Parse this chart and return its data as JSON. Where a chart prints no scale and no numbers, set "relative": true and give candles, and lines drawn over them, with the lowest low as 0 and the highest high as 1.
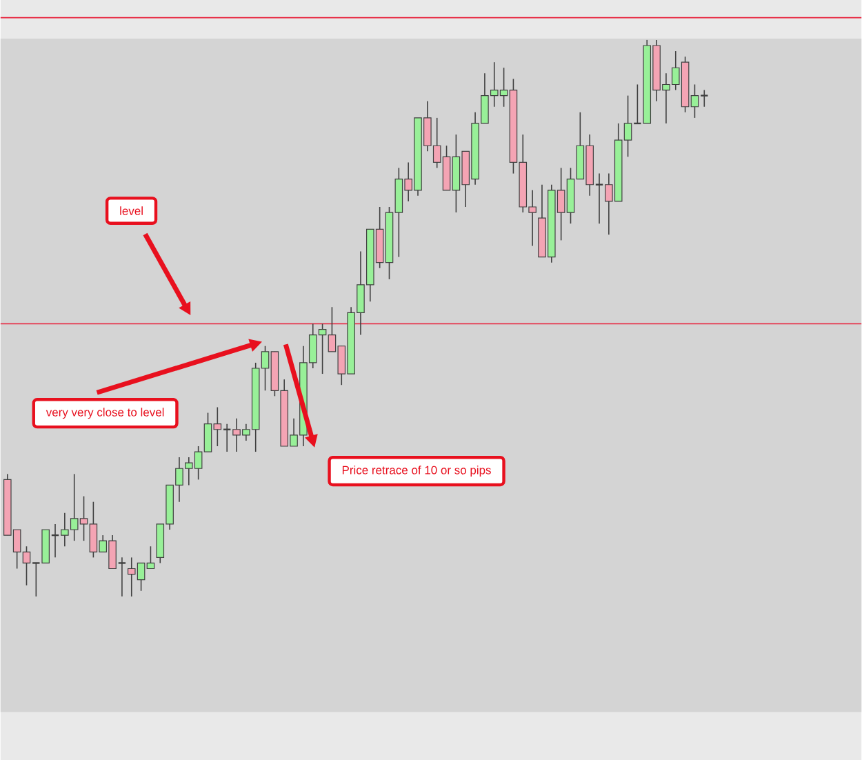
{
  "chart_data": {
    "type": "candlestick",
    "relative": true,
    "categories": [
      null,
      null,
      null,
      null,
      null,
      null,
      null,
      null,
      null,
      null,
      null,
      null,
      null,
      null,
      null,
      null,
      null,
      null,
      null,
      null,
      null,
      null,
      null,
      null,
      null,
      null,
      null,
      null,
      null,
      null,
      null,
      null,
      null,
      null,
      null,
      null,
      null,
      null,
      null,
      null,
      null,
      null,
      null,
      null,
      null,
      null,
      null,
      null,
      null,
      null,
      null,
      null,
      null,
      null,
      null,
      null,
      null,
      null,
      null,
      null,
      null,
      null,
      null,
      null,
      null,
      null,
      null,
      null,
      null,
      null,
      null,
      null,
      null,
      null
    ],
    "ohlc": [
      [
        0.21,
        0.22,
        0.11,
        0.11
      ],
      [
        0.12,
        0.12,
        0.05,
        0.08
      ],
      [
        0.08,
        0.09,
        0.02,
        0.06
      ],
      [
        0.06,
        0.06,
        0.0,
        0.06
      ],
      [
        0.06,
        0.12,
        0.06,
        0.12
      ],
      [
        0.11,
        0.13,
        0.07,
        0.11
      ],
      [
        0.11,
        0.15,
        0.09,
        0.12
      ],
      [
        0.12,
        0.22,
        0.1,
        0.14
      ],
      [
        0.14,
        0.18,
        0.1,
        0.13
      ],
      [
        0.13,
        0.17,
        0.07,
        0.08
      ],
      [
        0.08,
        0.11,
        0.08,
        0.1
      ],
      [
        0.1,
        0.11,
        0.05,
        0.05
      ],
      [
        0.06,
        0.07,
        0.0,
        0.06
      ],
      [
        0.05,
        0.07,
        0.0,
        0.04
      ],
      [
        0.03,
        0.06,
        0.01,
        0.06
      ],
      [
        0.05,
        0.09,
        0.05,
        0.06
      ],
      [
        0.07,
        0.13,
        0.06,
        0.13
      ],
      [
        0.13,
        0.2,
        0.12,
        0.2
      ],
      [
        0.2,
        0.25,
        0.17,
        0.23
      ],
      [
        0.23,
        0.25,
        0.2,
        0.24
      ],
      [
        0.23,
        0.27,
        0.21,
        0.26
      ],
      [
        0.26,
        0.33,
        0.26,
        0.31
      ],
      [
        0.31,
        0.34,
        0.27,
        0.3
      ],
      [
        0.3,
        0.31,
        0.26,
        0.3
      ],
      [
        0.3,
        0.32,
        0.26,
        0.29
      ],
      [
        0.29,
        0.31,
        0.28,
        0.3
      ],
      [
        0.3,
        0.42,
        0.26,
        0.41
      ],
      [
        0.41,
        0.45,
        0.37,
        0.44
      ],
      [
        0.44,
        0.44,
        0.36,
        0.37
      ],
      [
        0.37,
        0.39,
        0.27,
        0.27
      ],
      [
        0.27,
        0.32,
        0.27,
        0.29
      ],
      [
        0.29,
        0.45,
        0.27,
        0.42
      ],
      [
        0.42,
        0.49,
        0.41,
        0.47
      ],
      [
        0.47,
        0.49,
        0.4,
        0.48
      ],
      [
        0.47,
        0.52,
        0.44,
        0.44
      ],
      [
        0.45,
        0.45,
        0.38,
        0.4
      ],
      [
        0.4,
        0.52,
        0.4,
        0.51
      ],
      [
        0.51,
        0.62,
        0.47,
        0.56
      ],
      [
        0.56,
        0.66,
        0.53,
        0.66
      ],
      [
        0.66,
        0.7,
        0.59,
        0.6
      ],
      [
        0.6,
        0.7,
        0.57,
        0.69
      ],
      [
        0.69,
        0.77,
        0.61,
        0.75
      ],
      [
        0.75,
        0.78,
        0.71,
        0.73
      ],
      [
        0.73,
        0.86,
        0.72,
        0.86
      ],
      [
        0.86,
        0.89,
        0.8,
        0.81
      ],
      [
        0.81,
        0.86,
        0.77,
        0.78
      ],
      [
        0.79,
        0.81,
        0.73,
        0.73
      ],
      [
        0.73,
        0.83,
        0.69,
        0.79
      ],
      [
        0.8,
        0.8,
        0.7,
        0.74
      ],
      [
        0.75,
        0.87,
        0.74,
        0.85
      ],
      [
        0.85,
        0.94,
        0.85,
        0.9
      ],
      [
        0.9,
        0.96,
        0.88,
        0.91
      ],
      [
        0.9,
        0.95,
        0.88,
        0.91
      ],
      [
        0.91,
        0.93,
        0.76,
        0.78
      ],
      [
        0.78,
        0.83,
        0.69,
        0.7
      ],
      [
        0.7,
        0.73,
        0.63,
        0.69
      ],
      [
        0.68,
        0.74,
        0.61,
        0.61
      ],
      [
        0.61,
        0.74,
        0.6,
        0.73
      ],
      [
        0.73,
        0.77,
        0.64,
        0.69
      ],
      [
        0.69,
        0.77,
        0.67,
        0.75
      ],
      [
        0.75,
        0.87,
        0.75,
        0.81
      ],
      [
        0.81,
        0.83,
        0.72,
        0.74
      ],
      [
        0.74,
        0.76,
        0.67,
        0.74
      ],
      [
        0.74,
        0.76,
        0.65,
        0.71
      ],
      [
        0.71,
        0.85,
        0.71,
        0.82
      ],
      [
        0.82,
        0.9,
        0.79,
        0.85
      ],
      [
        0.85,
        0.92,
        0.85,
        0.85
      ],
      [
        0.85,
        1.0,
        0.85,
        0.99
      ],
      [
        0.99,
        1.0,
        0.89,
        0.91
      ],
      [
        0.91,
        0.94,
        0.85,
        0.92
      ],
      [
        0.92,
        0.98,
        0.91,
        0.95
      ],
      [
        0.96,
        0.97,
        0.87,
        0.88
      ],
      [
        0.88,
        0.92,
        0.86,
        0.9
      ],
      [
        0.9,
        0.91,
        0.88,
        0.9
      ]
    ],
    "ref_lines": [
      {
        "axis": "y",
        "value": 0.49,
        "color": "#e8203a"
      },
      {
        "axis": "y",
        "value": 1.04,
        "color": "#e8203a"
      }
    ],
    "annotations": [
      "level",
      "very very close to level",
      "Price retrace of 10 or so pips"
    ]
  }
}
